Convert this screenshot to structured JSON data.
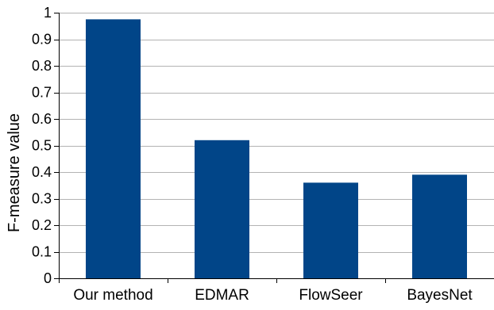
{
  "chart_data": {
    "type": "bar",
    "title": "",
    "xlabel": "",
    "ylabel": "F-measure value",
    "categories": [
      "Our method",
      "EDMAR",
      "FlowSeer",
      "BayesNet"
    ],
    "values": [
      0.975,
      0.52,
      0.36,
      0.39
    ],
    "ylim": [
      0,
      1
    ],
    "yticks": [
      "0",
      "0.1",
      "0.2",
      "0.3",
      "0.4",
      "0.5",
      "0.6",
      "0.7",
      "0.8",
      "0.9",
      "1"
    ],
    "grid": true,
    "legend": "none",
    "colors": {
      "bar": "#014588",
      "grid": "#b3b3b3",
      "axis": "#000000"
    }
  }
}
